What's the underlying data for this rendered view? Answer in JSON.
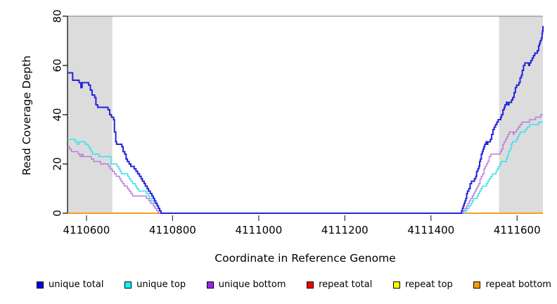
{
  "chart_data": {
    "type": "line",
    "subtype": "step-after",
    "title": "",
    "xlabel": "Coordinate in Reference Genome",
    "ylabel": "Read Coverage Depth",
    "xlim": [
      4110556,
      4111660
    ],
    "ylim": [
      0,
      80
    ],
    "x_ticks": [
      4110600,
      4110800,
      4111000,
      4111200,
      4111400,
      4111600
    ],
    "y_ticks": [
      0,
      20,
      40,
      60,
      80
    ],
    "grid": false,
    "legend_position": "bottom",
    "background_color": "#ffffff",
    "shaded_region_color": "#dcdcdc",
    "boundary_line_color": "#909090",
    "shaded_regions": [
      {
        "x0": 4110556,
        "x1": 4110660
      },
      {
        "x0": 4111558,
        "x1": 4111660
      }
    ],
    "boundary_line_y": 80,
    "series": [
      {
        "name": "repeat total",
        "line_color": "#dd0000",
        "legend_color": "#ee0000",
        "width": 1.2,
        "points": [
          [
            4110556,
            0
          ],
          [
            4111660,
            0
          ]
        ]
      },
      {
        "name": "repeat top",
        "line_color": "#ffff00",
        "legend_color": "#ffff00",
        "width": 1.2,
        "points": [
          [
            4110556,
            0
          ],
          [
            4111660,
            0
          ]
        ]
      },
      {
        "name": "repeat bottom",
        "line_color": "#ff9414",
        "legend_color": "#ff9900",
        "width": 1.8,
        "points": [
          [
            4110556,
            0
          ],
          [
            4111660,
            0
          ]
        ]
      },
      {
        "name": "unique top",
        "line_color": "#35e2ea",
        "legend_color": "#00ffff",
        "width": 1.4,
        "points": [
          [
            4110556,
            30
          ],
          [
            4110574,
            29
          ],
          [
            4110579,
            28
          ],
          [
            4110583,
            29
          ],
          [
            4110597,
            28
          ],
          [
            4110604,
            27
          ],
          [
            4110608,
            26
          ],
          [
            4110611,
            25
          ],
          [
            4110614,
            24
          ],
          [
            4110629,
            23
          ],
          [
            4110657,
            20
          ],
          [
            4110671,
            19
          ],
          [
            4110675,
            18
          ],
          [
            4110678,
            17
          ],
          [
            4110681,
            16
          ],
          [
            4110696,
            15
          ],
          [
            4110699,
            14
          ],
          [
            4110703,
            13
          ],
          [
            4110707,
            12
          ],
          [
            4110714,
            11
          ],
          [
            4110717,
            10
          ],
          [
            4110721,
            9
          ],
          [
            4110739,
            8
          ],
          [
            4110743,
            7
          ],
          [
            4110747,
            6
          ],
          [
            4110751,
            5
          ],
          [
            4110757,
            4
          ],
          [
            4110763,
            3
          ],
          [
            4110767,
            2
          ],
          [
            4110770,
            1
          ],
          [
            4110773,
            0
          ],
          [
            4111478,
            0
          ],
          [
            4111481,
            1
          ],
          [
            4111484,
            2
          ],
          [
            4111489,
            3
          ],
          [
            4111493,
            4
          ],
          [
            4111496,
            5
          ],
          [
            4111499,
            6
          ],
          [
            4111507,
            7
          ],
          [
            4111510,
            8
          ],
          [
            4111513,
            9
          ],
          [
            4111516,
            10
          ],
          [
            4111519,
            11
          ],
          [
            4111529,
            12
          ],
          [
            4111532,
            13
          ],
          [
            4111535,
            14
          ],
          [
            4111539,
            15
          ],
          [
            4111543,
            16
          ],
          [
            4111551,
            17
          ],
          [
            4111554,
            18
          ],
          [
            4111557,
            19
          ],
          [
            4111560,
            20
          ],
          [
            4111563,
            21
          ],
          [
            4111575,
            22
          ],
          [
            4111577,
            23
          ],
          [
            4111580,
            25
          ],
          [
            4111583,
            26
          ],
          [
            4111586,
            28
          ],
          [
            4111589,
            29
          ],
          [
            4111598,
            30
          ],
          [
            4111601,
            31
          ],
          [
            4111604,
            32
          ],
          [
            4111607,
            33
          ],
          [
            4111619,
            34
          ],
          [
            4111623,
            35
          ],
          [
            4111629,
            36
          ],
          [
            4111650,
            37
          ],
          [
            4111660,
            37
          ]
        ]
      },
      {
        "name": "unique bottom",
        "line_color": "#b879df",
        "legend_color": "#a020f0",
        "width": 1.4,
        "points": [
          [
            4110556,
            27
          ],
          [
            4110561,
            26
          ],
          [
            4110565,
            25
          ],
          [
            4110581,
            24
          ],
          [
            4110585,
            23
          ],
          [
            4110589,
            24
          ],
          [
            4110592,
            23
          ],
          [
            4110611,
            22
          ],
          [
            4110617,
            21
          ],
          [
            4110633,
            20
          ],
          [
            4110651,
            19
          ],
          [
            4110655,
            18
          ],
          [
            4110660,
            17
          ],
          [
            4110665,
            16
          ],
          [
            4110669,
            15
          ],
          [
            4110677,
            14
          ],
          [
            4110680,
            13
          ],
          [
            4110684,
            12
          ],
          [
            4110688,
            11
          ],
          [
            4110695,
            10
          ],
          [
            4110699,
            9
          ],
          [
            4110703,
            8
          ],
          [
            4110707,
            7
          ],
          [
            4110739,
            6
          ],
          [
            4110745,
            5
          ],
          [
            4110749,
            4
          ],
          [
            4110755,
            3
          ],
          [
            4110759,
            2
          ],
          [
            4110763,
            1
          ],
          [
            4110767,
            0
          ],
          [
            4111473,
            0
          ],
          [
            4111476,
            1
          ],
          [
            4111479,
            2
          ],
          [
            4111483,
            3
          ],
          [
            4111486,
            4
          ],
          [
            4111489,
            5
          ],
          [
            4111492,
            6
          ],
          [
            4111496,
            7
          ],
          [
            4111499,
            8
          ],
          [
            4111502,
            9
          ],
          [
            4111505,
            10
          ],
          [
            4111508,
            11
          ],
          [
            4111511,
            12
          ],
          [
            4111514,
            14
          ],
          [
            4111517,
            15
          ],
          [
            4111520,
            16
          ],
          [
            4111523,
            18
          ],
          [
            4111526,
            19
          ],
          [
            4111529,
            20
          ],
          [
            4111532,
            21
          ],
          [
            4111535,
            23
          ],
          [
            4111539,
            24
          ],
          [
            4111561,
            25
          ],
          [
            4111564,
            26
          ],
          [
            4111567,
            28
          ],
          [
            4111570,
            29
          ],
          [
            4111573,
            30
          ],
          [
            4111576,
            31
          ],
          [
            4111579,
            32
          ],
          [
            4111582,
            33
          ],
          [
            4111591,
            32
          ],
          [
            4111593,
            33
          ],
          [
            4111599,
            34
          ],
          [
            4111603,
            35
          ],
          [
            4111607,
            36
          ],
          [
            4111611,
            37
          ],
          [
            4111629,
            38
          ],
          [
            4111643,
            39
          ],
          [
            4111655,
            40
          ],
          [
            4111660,
            40
          ]
        ]
      },
      {
        "name": "unique total",
        "line_color": "#2424dc",
        "legend_color": "#0000ee",
        "width": 2,
        "points": [
          [
            4110556,
            57
          ],
          [
            4110568,
            54
          ],
          [
            4110583,
            53
          ],
          [
            4110587,
            51
          ],
          [
            4110590,
            53
          ],
          [
            4110605,
            52
          ],
          [
            4110609,
            50
          ],
          [
            4110613,
            48
          ],
          [
            4110619,
            47
          ],
          [
            4110622,
            44
          ],
          [
            4110626,
            43
          ],
          [
            4110650,
            42
          ],
          [
            4110654,
            40
          ],
          [
            4110658,
            39
          ],
          [
            4110663,
            38
          ],
          [
            4110665,
            33
          ],
          [
            4110668,
            29
          ],
          [
            4110670,
            28
          ],
          [
            4110682,
            27
          ],
          [
            4110685,
            25
          ],
          [
            4110689,
            24
          ],
          [
            4110692,
            22
          ],
          [
            4110695,
            21
          ],
          [
            4110699,
            20
          ],
          [
            4110703,
            19
          ],
          [
            4110711,
            18
          ],
          [
            4110715,
            17
          ],
          [
            4110719,
            16
          ],
          [
            4110723,
            15
          ],
          [
            4110727,
            14
          ],
          [
            4110730,
            13
          ],
          [
            4110734,
            12
          ],
          [
            4110737,
            11
          ],
          [
            4110741,
            10
          ],
          [
            4110744,
            9
          ],
          [
            4110748,
            8
          ],
          [
            4110752,
            7
          ],
          [
            4110755,
            6
          ],
          [
            4110758,
            5
          ],
          [
            4110761,
            4
          ],
          [
            4110764,
            3
          ],
          [
            4110767,
            2
          ],
          [
            4110770,
            1
          ],
          [
            4110773,
            0
          ],
          [
            4111468,
            0
          ],
          [
            4111471,
            1
          ],
          [
            4111473,
            2
          ],
          [
            4111475,
            3
          ],
          [
            4111477,
            4
          ],
          [
            4111479,
            5
          ],
          [
            4111481,
            6
          ],
          [
            4111483,
            8
          ],
          [
            4111485,
            9
          ],
          [
            4111488,
            10
          ],
          [
            4111491,
            12
          ],
          [
            4111494,
            13
          ],
          [
            4111501,
            14
          ],
          [
            4111504,
            15
          ],
          [
            4111506,
            17
          ],
          [
            4111509,
            18
          ],
          [
            4111511,
            19
          ],
          [
            4111513,
            21
          ],
          [
            4111515,
            22
          ],
          [
            4111517,
            24
          ],
          [
            4111519,
            25
          ],
          [
            4111521,
            26
          ],
          [
            4111523,
            27
          ],
          [
            4111525,
            28
          ],
          [
            4111528,
            29
          ],
          [
            4111530,
            28
          ],
          [
            4111532,
            29
          ],
          [
            4111538,
            30
          ],
          [
            4111541,
            32
          ],
          [
            4111544,
            34
          ],
          [
            4111547,
            35
          ],
          [
            4111550,
            36
          ],
          [
            4111553,
            37
          ],
          [
            4111556,
            38
          ],
          [
            4111562,
            39
          ],
          [
            4111564,
            40
          ],
          [
            4111567,
            42
          ],
          [
            4111570,
            43
          ],
          [
            4111572,
            44
          ],
          [
            4111575,
            45
          ],
          [
            4111579,
            44
          ],
          [
            4111581,
            45
          ],
          [
            4111587,
            46
          ],
          [
            4111590,
            47
          ],
          [
            4111593,
            49
          ],
          [
            4111596,
            51
          ],
          [
            4111599,
            52
          ],
          [
            4111604,
            53
          ],
          [
            4111607,
            55
          ],
          [
            4111610,
            56
          ],
          [
            4111612,
            58
          ],
          [
            4111615,
            60
          ],
          [
            4111618,
            61
          ],
          [
            4111627,
            60
          ],
          [
            4111629,
            61
          ],
          [
            4111632,
            62
          ],
          [
            4111635,
            63
          ],
          [
            4111638,
            64
          ],
          [
            4111641,
            65
          ],
          [
            4111647,
            66
          ],
          [
            4111650,
            68
          ],
          [
            4111652,
            69
          ],
          [
            4111654,
            70
          ],
          [
            4111656,
            71
          ],
          [
            4111658,
            73
          ],
          [
            4111659,
            74
          ],
          [
            4111660,
            76
          ]
        ]
      }
    ],
    "legend": [
      {
        "label": "unique total",
        "color": "#0000ee"
      },
      {
        "label": "unique top",
        "color": "#00ffff"
      },
      {
        "label": "unique bottom",
        "color": "#a020f0"
      },
      {
        "label": "repeat total",
        "color": "#ee0000"
      },
      {
        "label": "repeat top",
        "color": "#ffff00"
      },
      {
        "label": "repeat bottom",
        "color": "#ff9900"
      }
    ]
  }
}
